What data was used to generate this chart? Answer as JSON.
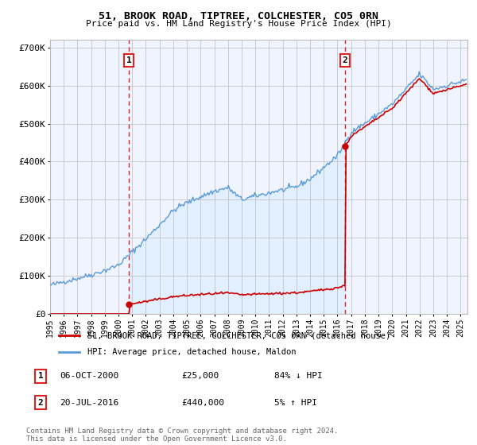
{
  "title": "51, BROOK ROAD, TIPTREE, COLCHESTER, CO5 0RN",
  "subtitle": "Price paid vs. HM Land Registry's House Price Index (HPI)",
  "hpi_label": "HPI: Average price, detached house, Maldon",
  "property_label": "51, BROOK ROAD, TIPTREE, COLCHESTER, CO5 0RN (detached house)",
  "sale1_date_num": 2000.77,
  "sale1_price": 25000,
  "sale1_label": "1",
  "sale1_date_str": "06-OCT-2000",
  "sale1_price_str": "£25,000",
  "sale1_hpi_str": "84% ↓ HPI",
  "sale2_date_num": 2016.55,
  "sale2_price": 440000,
  "sale2_label": "2",
  "sale2_date_str": "20-JUL-2016",
  "sale2_price_str": "£440,000",
  "sale2_hpi_str": "5% ↑ HPI",
  "vline1_x": 2000.77,
  "vline2_x": 2016.55,
  "xmin": 1995,
  "xmax": 2025.5,
  "ymin": 0,
  "ymax": 720000,
  "yticks": [
    0,
    100000,
    200000,
    300000,
    400000,
    500000,
    600000,
    700000
  ],
  "ytick_labels": [
    "£0",
    "£100K",
    "£200K",
    "£300K",
    "£400K",
    "£500K",
    "£600K",
    "£700K"
  ],
  "hpi_color": "#5b9bd5",
  "hpi_fill_color": "#ddeeff",
  "sale_color": "#cc0000",
  "vline_color": "#dd2222",
  "grid_color": "#bbbbbb",
  "bg_color": "#ffffff",
  "plot_bg_color": "#f0f4ff",
  "footnote": "Contains HM Land Registry data © Crown copyright and database right 2024.\nThis data is licensed under the Open Government Licence v3.0."
}
